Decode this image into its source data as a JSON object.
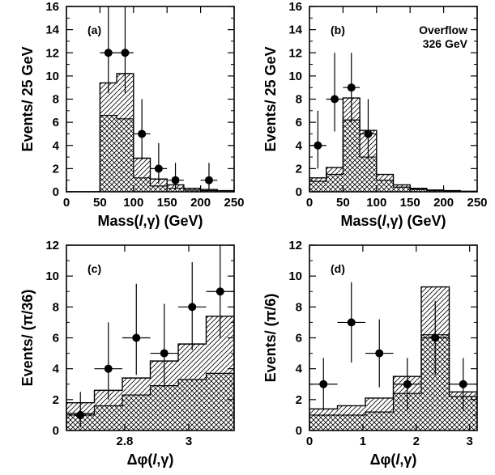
{
  "chart_data": [
    {
      "type": "bar",
      "panel_label": "(a)",
      "annotation": "",
      "xlabel": "Mass(l,γ) (GeV)",
      "xlabel_parts": [
        "Mass(",
        "l",
        ",γ) (GeV)"
      ],
      "ylabel": "Events/ 25 GeV",
      "xlim": [
        0,
        250
      ],
      "ylim": [
        0,
        16
      ],
      "xticks": [
        0,
        50,
        100,
        150,
        200,
        250
      ],
      "xtick_labels": [
        "0",
        "50",
        "100",
        "150",
        "200",
        "250"
      ],
      "yticks": [
        0,
        2,
        4,
        6,
        8,
        10,
        12,
        14,
        16
      ],
      "ytick_labels": [
        "0",
        "2",
        "4",
        "6",
        "8",
        "10",
        "12",
        "14",
        "16"
      ],
      "bin_edges": [
        0,
        25,
        50,
        75,
        100,
        125,
        150,
        175,
        200,
        225,
        250
      ],
      "background": [
        0,
        0,
        6.6,
        6.3,
        1.2,
        0.5,
        0.3,
        0.15,
        0.1,
        0,
        0
      ],
      "total": [
        0,
        0,
        9.4,
        10.2,
        2.9,
        1.1,
        0.6,
        0.3,
        0.2,
        0.1,
        0
      ],
      "points": [
        {
          "x": 62.5,
          "y": 12,
          "yerr_lo": 3.5,
          "yerr_hi": 4.5,
          "xerr": 12.5
        },
        {
          "x": 87.5,
          "y": 12,
          "yerr_lo": 3.5,
          "yerr_hi": 4.5,
          "xerr": 12.5
        },
        {
          "x": 112.5,
          "y": 5,
          "yerr_lo": 2.2,
          "yerr_hi": 3.0,
          "xerr": 12.5
        },
        {
          "x": 137.5,
          "y": 2,
          "yerr_lo": 1.3,
          "yerr_hi": 2.2,
          "xerr": 12.5
        },
        {
          "x": 162.5,
          "y": 1,
          "yerr_lo": 0.8,
          "yerr_hi": 1.5,
          "xerr": 12.5
        },
        {
          "x": 212.5,
          "y": 1,
          "yerr_lo": 0.8,
          "yerr_hi": 1.5,
          "xerr": 12.5
        }
      ]
    },
    {
      "type": "bar",
      "panel_label": "(b)",
      "annotation": [
        "Overflow",
        "326 GeV"
      ],
      "xlabel": "Mass(l,γ) (GeV)",
      "xlabel_parts": [
        "Mass(",
        "l",
        ",γ) (GeV)"
      ],
      "ylabel": "Events/ 25 GeV",
      "xlim": [
        0,
        250
      ],
      "ylim": [
        0,
        16
      ],
      "xticks": [
        0,
        50,
        100,
        150,
        200,
        250
      ],
      "xtick_labels": [
        "0",
        "50",
        "100",
        "150",
        "200",
        "250"
      ],
      "yticks": [
        0,
        2,
        4,
        6,
        8,
        10,
        12,
        14,
        16
      ],
      "ytick_labels": [
        "0",
        "2",
        "4",
        "6",
        "8",
        "10",
        "12",
        "14",
        "16"
      ],
      "bin_edges": [
        0,
        25,
        50,
        75,
        100,
        125,
        150,
        175,
        200,
        225,
        250
      ],
      "background": [
        0.9,
        1.5,
        6.2,
        3.0,
        1.0,
        0.4,
        0.2,
        0.1,
        0.05,
        0
      ],
      "total": [
        1.2,
        2.1,
        8.1,
        5.3,
        1.5,
        0.6,
        0.3,
        0.15,
        0.1,
        0.05
      ],
      "points": [
        {
          "x": 12.5,
          "y": 4,
          "yerr_lo": 2.0,
          "yerr_hi": 3.0,
          "xerr": 12.5
        },
        {
          "x": 37.5,
          "y": 8,
          "yerr_lo": 2.8,
          "yerr_hi": 4.0,
          "xerr": 12.5
        },
        {
          "x": 62.5,
          "y": 9,
          "yerr_lo": 3.0,
          "yerr_hi": 3.0,
          "xerr": 12.5
        },
        {
          "x": 87.5,
          "y": 5,
          "yerr_lo": 2.2,
          "yerr_hi": 3.0,
          "xerr": 12.5
        }
      ]
    },
    {
      "type": "bar",
      "panel_label": "(c)",
      "annotation": "",
      "xlabel": "Δφ(l,γ)",
      "xlabel_parts": [
        "Δφ(",
        "l",
        ",γ)"
      ],
      "ylabel": "Events/ (π/36)",
      "xlim": [
        2.618,
        3.1416
      ],
      "ylim": [
        0,
        12
      ],
      "xticks": [
        2.8,
        3.0
      ],
      "xtick_labels": [
        "2.8",
        "3"
      ],
      "yticks": [
        0,
        2,
        4,
        6,
        8,
        10,
        12
      ],
      "ytick_labels": [
        "0",
        "2",
        "4",
        "6",
        "8",
        "10",
        "12"
      ],
      "bin_edges": [
        2.618,
        2.7053,
        2.7925,
        2.8798,
        2.9671,
        3.0543,
        3.1416
      ],
      "background": [
        1.1,
        1.6,
        2.3,
        2.9,
        3.3,
        3.7
      ],
      "total": [
        1.8,
        2.6,
        3.4,
        4.5,
        5.6,
        7.4
      ],
      "points": [
        {
          "x": 2.6616,
          "y": 1,
          "yerr_lo": 0.8,
          "yerr_hi": 1.5,
          "xerr": 0.0436
        },
        {
          "x": 2.7489,
          "y": 4,
          "yerr_lo": 2.0,
          "yerr_hi": 3.0,
          "xerr": 0.0436
        },
        {
          "x": 2.8362,
          "y": 6,
          "yerr_lo": 2.4,
          "yerr_hi": 3.5,
          "xerr": 0.0436
        },
        {
          "x": 2.9234,
          "y": 5,
          "yerr_lo": 2.2,
          "yerr_hi": 3.2,
          "xerr": 0.0436
        },
        {
          "x": 3.0107,
          "y": 8,
          "yerr_lo": 2.8,
          "yerr_hi": 2.9,
          "xerr": 0.0436
        },
        {
          "x": 3.098,
          "y": 9,
          "yerr_lo": 3.0,
          "yerr_hi": 3.5,
          "xerr": 0.0436
        }
      ]
    },
    {
      "type": "bar",
      "panel_label": "(d)",
      "annotation": "",
      "xlabel": "Δφ(l,γ)",
      "xlabel_parts": [
        "Δφ(",
        "l",
        ",γ)"
      ],
      "ylabel": "Events/ (π/6)",
      "xlim": [
        0,
        3.1416
      ],
      "ylim": [
        0,
        12
      ],
      "xticks": [
        0,
        1,
        2,
        3
      ],
      "xtick_labels": [
        "0",
        "1",
        "2",
        "3"
      ],
      "yticks": [
        0,
        2,
        4,
        6,
        8,
        10,
        12
      ],
      "ytick_labels": [
        "0",
        "2",
        "4",
        "6",
        "8",
        "10",
        "12"
      ],
      "bin_edges": [
        0,
        0.5236,
        1.0472,
        1.5708,
        2.0944,
        2.618,
        3.1416
      ],
      "background": [
        1.0,
        1.0,
        1.2,
        2.4,
        6.2,
        2.2
      ],
      "total": [
        1.4,
        1.6,
        2.1,
        3.5,
        9.3,
        2.5
      ],
      "points": [
        {
          "x": 0.2618,
          "y": 3,
          "yerr_lo": 1.7,
          "yerr_hi": 1.7,
          "xerr": 0.2618
        },
        {
          "x": 0.7854,
          "y": 7,
          "yerr_lo": 2.6,
          "yerr_hi": 2.6,
          "xerr": 0.2618
        },
        {
          "x": 1.309,
          "y": 5,
          "yerr_lo": 2.2,
          "yerr_hi": 2.2,
          "xerr": 0.2618
        },
        {
          "x": 1.8326,
          "y": 3,
          "yerr_lo": 1.7,
          "yerr_hi": 1.7,
          "xerr": 0.2618
        },
        {
          "x": 2.3562,
          "y": 6,
          "yerr_lo": 2.4,
          "yerr_hi": 2.4,
          "xerr": 0.2618
        },
        {
          "x": 2.8798,
          "y": 3,
          "yerr_lo": 1.7,
          "yerr_hi": 1.7,
          "xerr": 0.2618
        }
      ]
    }
  ]
}
